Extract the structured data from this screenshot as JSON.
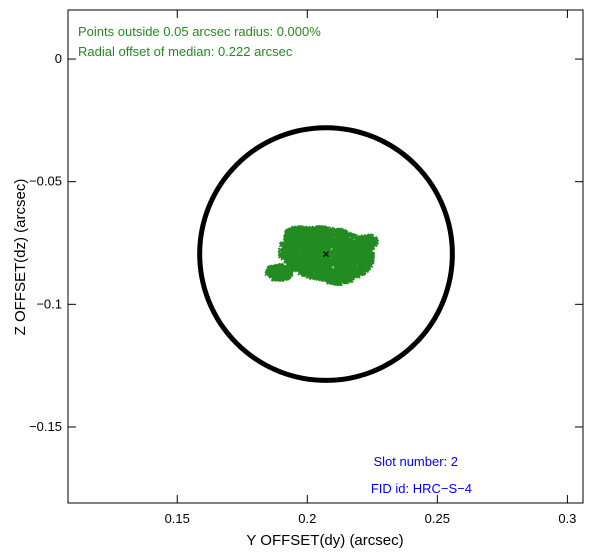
{
  "chart_data": {
    "type": "scatter",
    "title": "",
    "xlabel": "Y OFFSET(dy) (arcsec)",
    "ylabel": "Z OFFSET(dz) (arcsec)",
    "xlim": [
      0.108,
      0.306
    ],
    "ylim": [
      -0.181,
      0.02
    ],
    "xticks": [
      {
        "value": 0.15,
        "label": "0.15"
      },
      {
        "value": 0.2,
        "label": "0.2"
      },
      {
        "value": 0.25,
        "label": "0.25"
      },
      {
        "value": 0.3,
        "label": "0.3"
      }
    ],
    "yticks": [
      {
        "value": 0,
        "label": "0"
      },
      {
        "value": -0.05,
        "label": "−0.05"
      },
      {
        "value": -0.1,
        "label": "−0.1"
      },
      {
        "value": -0.15,
        "label": "−0.15"
      }
    ],
    "circle": {
      "center_x": 0.2072,
      "center_y": -0.0795,
      "radius": 0.05,
      "color": "#000000"
    },
    "cluster": {
      "color": "#228b22",
      "center_x": 0.2072,
      "center_y": -0.0795,
      "x_range": [
        0.1875,
        0.2255
      ],
      "y_range": [
        -0.0955,
        -0.068
      ]
    },
    "median": {
      "x": 0.2072,
      "y": -0.0795,
      "color": "#000000"
    },
    "annotations": {
      "points_outside": "Points outside 0.05 arcsec radius: 0.000%",
      "radial_offset": "Radial offset of median: 0.222 arcsec",
      "slot_number": "Slot number: 2",
      "fid_id": "FID id: HRC−S−4"
    },
    "colors": {
      "green": "#228b22",
      "blue": "#0000ff",
      "frame": "#000000"
    }
  }
}
